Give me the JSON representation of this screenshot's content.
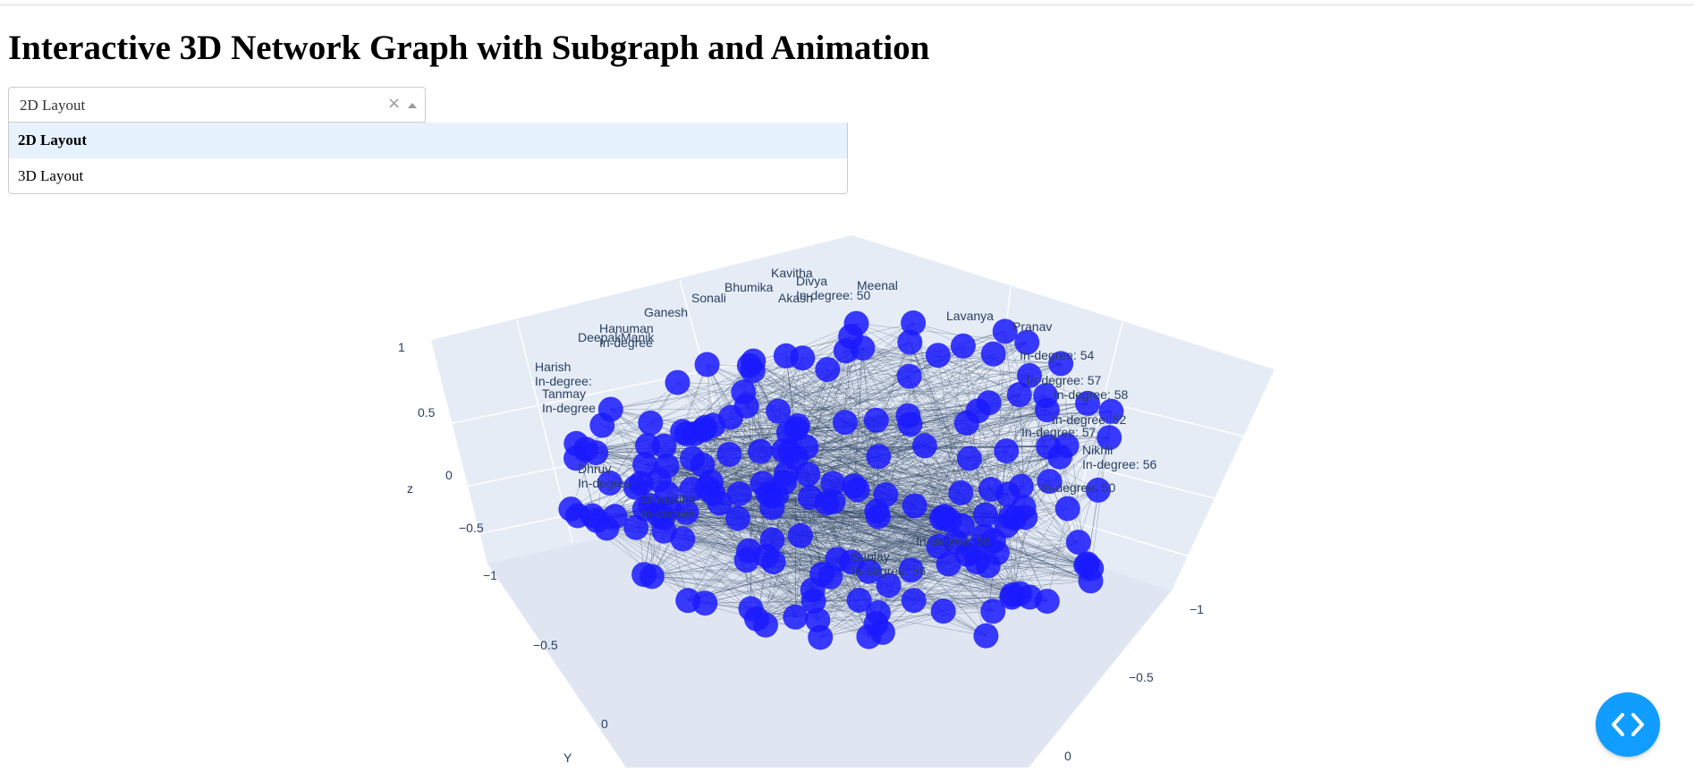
{
  "page": {
    "title": "Interactive 3D Network Graph with Subgraph and Animation"
  },
  "layout_dropdown": {
    "value": "2D Layout",
    "clear_symbol": "×",
    "options": [
      "2D Layout",
      "3D Layout"
    ],
    "highlighted": "2D Layout"
  },
  "graph": {
    "scene_bg": "#e5ecf6",
    "node_color": "#1a1aff",
    "edge_color": "#2a3f5f",
    "axes": {
      "z_title": "z",
      "z_ticks": [
        "1",
        "0.5",
        "0",
        "−0.5",
        "−1"
      ],
      "y_title": "Y",
      "y_ticks": [
        "−0.5",
        "0"
      ],
      "x_ticks": [
        "−1",
        "−0.5",
        "0"
      ]
    },
    "node_labels": [
      {
        "name": "Kavitha",
        "degree": ""
      },
      {
        "name": "Divya",
        "degree": "In-degree: 50"
      },
      {
        "name": "Meenal",
        "degree": ""
      },
      {
        "name": "Bhumika",
        "degree": ""
      },
      {
        "name": "Sonali",
        "degree": ""
      },
      {
        "name": "Akash",
        "degree": ""
      },
      {
        "name": "Ganesh",
        "degree": ""
      },
      {
        "name": "Lavanya",
        "degree": ""
      },
      {
        "name": "Pranav",
        "degree": ""
      },
      {
        "name": "Deepak",
        "degree": ""
      },
      {
        "name": "Hanuman",
        "degree": "In-degree"
      },
      {
        "name": "Manik",
        "degree": ""
      },
      {
        "name": "Harish",
        "degree": "In-degree:"
      },
      {
        "name": "Tanmay",
        "degree": "In-degree"
      },
      {
        "name": "Nikhil",
        "degree": "In-degree: 56"
      },
      {
        "name": "Dhruv",
        "degree": "In-degree"
      },
      {
        "name": "Shraddha",
        "degree": "In-degree"
      },
      {
        "name": "Sanjay",
        "degree": "In-degree: 56"
      },
      {
        "name": "",
        "degree": "In-degree: 54"
      },
      {
        "name": "",
        "degree": "In-degree: 57"
      },
      {
        "name": "",
        "degree": "In-degree: 58"
      },
      {
        "name": "",
        "degree": "In-degree: 52"
      },
      {
        "name": "",
        "degree": "In-degree: 57"
      },
      {
        "name": "",
        "degree": "In-degree: 50"
      },
      {
        "name": "",
        "degree": "In-degree: 56"
      }
    ]
  },
  "debug_button": {
    "icon": "code-brackets-icon"
  }
}
